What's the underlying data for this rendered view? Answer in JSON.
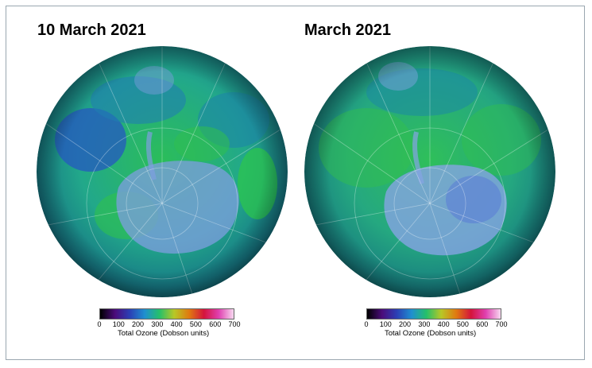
{
  "panels": [
    {
      "title": "10 March 2021"
    },
    {
      "title": "March 2021"
    }
  ],
  "colorbar": {
    "ticks": [
      "0",
      "100",
      "200",
      "300",
      "400",
      "500",
      "600",
      "700"
    ],
    "label": "Total Ozone (Dobson units)",
    "colors": [
      "#000000",
      "#4b0b7a",
      "#2b3fb5",
      "#1f8fd0",
      "#25c06a",
      "#b8c726",
      "#e07a10",
      "#d4143c",
      "#e040b0",
      "#f7d8f0"
    ]
  },
  "colors": {
    "land_ice": "#8aa6e0",
    "ozone_low": "#2a4fb8",
    "ozone_mid": "#1a9e90",
    "ozone_green": "#2cc04a"
  }
}
